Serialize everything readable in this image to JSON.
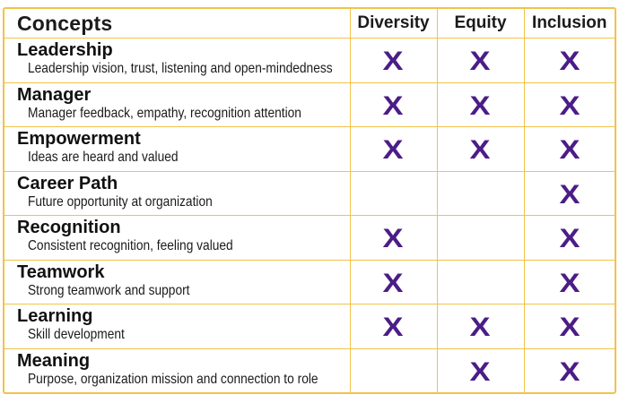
{
  "header": {
    "concepts": "Concepts",
    "columns": [
      "Diversity",
      "Equity",
      "Inclusion"
    ]
  },
  "mark_symbol": "X",
  "colors": {
    "border": "#f2c24b",
    "mark": "#4b1d87"
  },
  "rows": [
    {
      "name": "Leadership",
      "description": "Leadership vision, trust, listening and open-mindedness",
      "diversity": true,
      "equity": true,
      "inclusion": true
    },
    {
      "name": "Manager",
      "description": "Manager feedback, empathy, recognition attention",
      "diversity": true,
      "equity": true,
      "inclusion": true
    },
    {
      "name": "Empowerment",
      "description": "Ideas are heard and valued",
      "diversity": true,
      "equity": true,
      "inclusion": true
    },
    {
      "name": "Career Path",
      "description": "Future opportunity at organization",
      "diversity": false,
      "equity": false,
      "inclusion": true
    },
    {
      "name": "Recognition",
      "description": "Consistent recognition, feeling valued",
      "diversity": true,
      "equity": false,
      "inclusion": true
    },
    {
      "name": "Teamwork",
      "description": "Strong teamwork and support",
      "diversity": true,
      "equity": false,
      "inclusion": true
    },
    {
      "name": "Learning",
      "description": "Skill development",
      "diversity": true,
      "equity": true,
      "inclusion": true
    },
    {
      "name": "Meaning",
      "description": "Purpose, organization mission and connection to role",
      "diversity": false,
      "equity": true,
      "inclusion": true
    }
  ]
}
